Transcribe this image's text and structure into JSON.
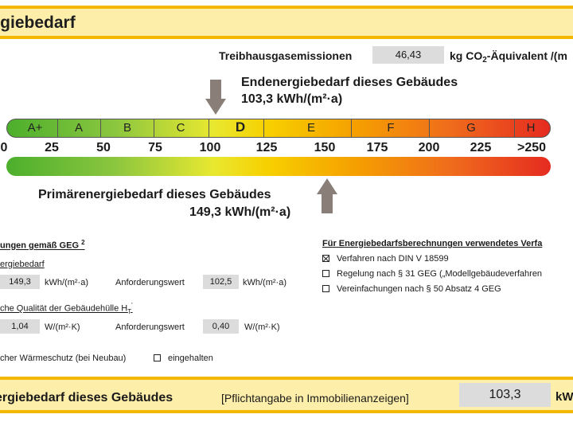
{
  "header": {
    "title": "rgiebedarf"
  },
  "emissions": {
    "label": "Treibhausgasemissionen",
    "value": "46,43",
    "unit_prefix": "kg CO",
    "unit_sub": "2",
    "unit_suffix": "-Äquivalent /(m"
  },
  "end_energy": {
    "line1": "Endenergiebedarf dieses Gebäudes",
    "line2": "103,3 kWh/(m²·a)"
  },
  "scale": {
    "classes": [
      "A+",
      "A",
      "B",
      "C",
      "D",
      "E",
      "F",
      "G",
      "H"
    ],
    "active_class": "D",
    "ticks": [
      "0",
      "25",
      "50",
      "75",
      "100",
      "125",
      "150",
      "175",
      "200",
      "225",
      ">250"
    ]
  },
  "primary_energy": {
    "line1": "Primärenergiebedarf dieses Gebäudes",
    "line2": "149,3 kWh/(m²·a)"
  },
  "requirements": {
    "heading": "ungen gemäß GEG",
    "heading_sup": "2",
    "primary_label": "ergiebedarf",
    "primary_actual": "149,3",
    "primary_unit": "kWh/(m²·a)",
    "req_label": "Anforderungswert",
    "primary_req": "102,5",
    "primary_req_unit": "kWh/(m²·a)",
    "shell_label": "che Qualität der Gebäudehülle H",
    "shell_sub": "T",
    "shell_sup": "'",
    "shell_actual": "1,04",
    "shell_unit": "W/(m²·K)",
    "shell_req": "0,40",
    "shell_req_unit": "W/(m²·K)",
    "summer_label": "cher Wärmeschutz (bei Neubau)",
    "summer_check": "eingehalten"
  },
  "methods": {
    "heading": "Für Energiebedarfsberechnungen verwendetes Verfa",
    "items": [
      {
        "label": "Verfahren nach DIN V 18599",
        "checked": true
      },
      {
        "label": "Regelung nach § 31 GEG („Modellgebäudeverfahren",
        "checked": false
      },
      {
        "label": "Vereinfachungen nach § 50 Absatz 4 GEG",
        "checked": false
      }
    ]
  },
  "footer": {
    "title": "ergiebedarf dieses Gebäudes",
    "note": "[Pflichtangabe in Immobilienanzeigen]",
    "value": "103,3",
    "unit": "kW"
  },
  "colors": {
    "banner": "#fdeeaa",
    "banner_border": "#f5b800",
    "arrow": "#8a7e78",
    "value_box": "#dcdcdc"
  }
}
